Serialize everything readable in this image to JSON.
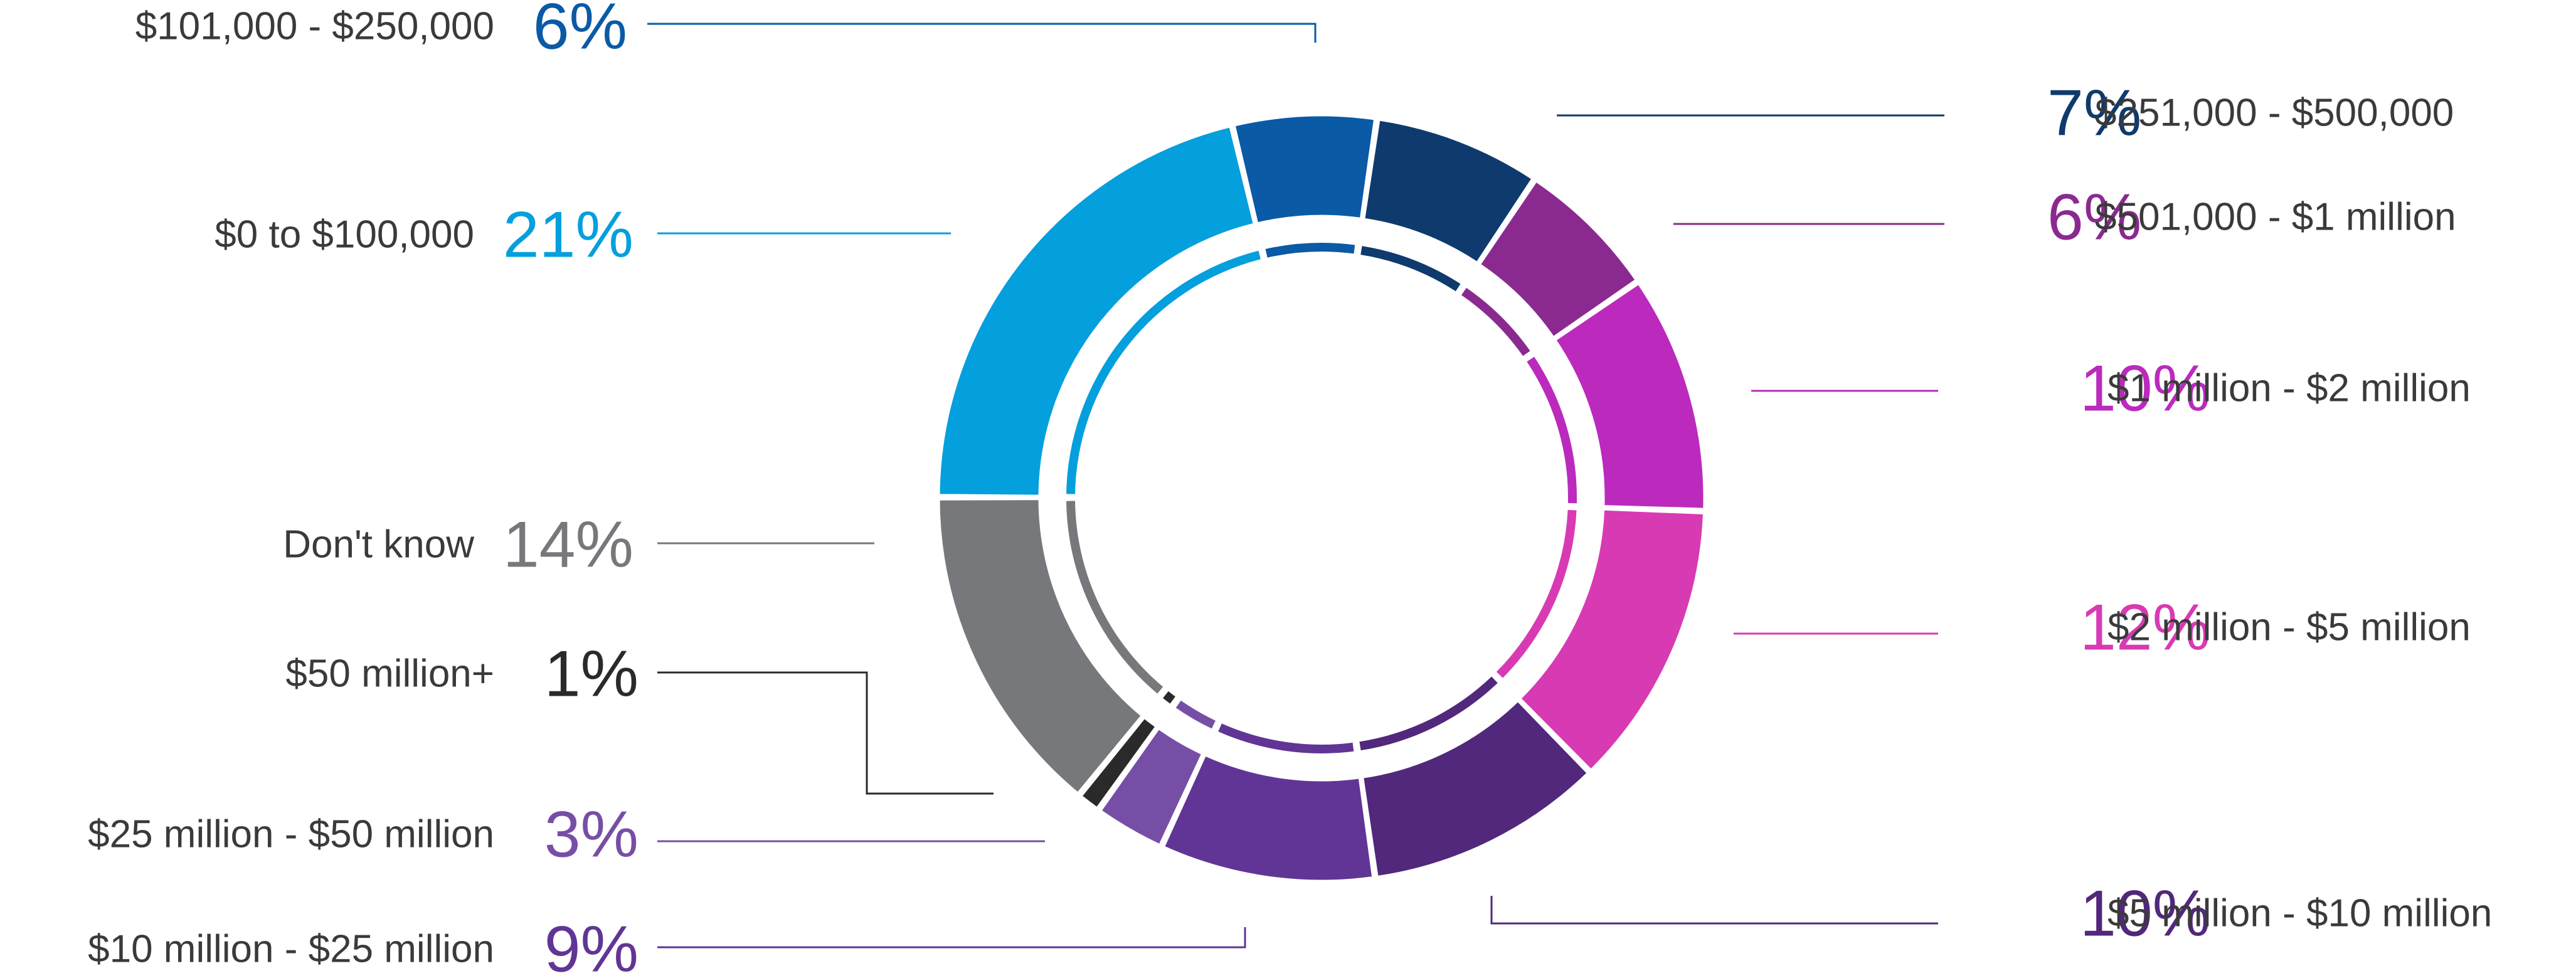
{
  "chart_data": {
    "type": "pie",
    "title": "",
    "slices": [
      {
        "label": "$101,000 - $250,000",
        "pct_text": "6%",
        "value": 6,
        "color": "#0a5aa6"
      },
      {
        "label": "$251,000 - $500,000",
        "pct_text": "7%",
        "value": 7,
        "color": "#0f3a6e"
      },
      {
        "label": "$501,000 - $1 million",
        "pct_text": "6%",
        "value": 6,
        "color": "#8a2a90"
      },
      {
        "label": "$1 million - $2 million",
        "pct_text": "10%",
        "value": 10,
        "color": "#bb2abd"
      },
      {
        "label": "$2 million - $5 million",
        "pct_text": "12%",
        "value": 12,
        "color": "#d83ab3"
      },
      {
        "label": "$5 million - $10 million",
        "pct_text": "10%",
        "value": 10,
        "color": "#51287c"
      },
      {
        "label": "$10 million - $25 million",
        "pct_text": "9%",
        "value": 9,
        "color": "#613595"
      },
      {
        "label": "$25 million - $50 million",
        "pct_text": "3%",
        "value": 3,
        "color": "#774ea5"
      },
      {
        "label": "$50 million+",
        "pct_text": "1%",
        "value": 1,
        "color": "#2a2a2a"
      },
      {
        "label": "Don't know",
        "pct_text": "14%",
        "value": 14,
        "color": "#77787b"
      },
      {
        "label": "$0 to $100,000",
        "pct_text": "21%",
        "value": 21,
        "color": "#049fdd"
      }
    ]
  }
}
